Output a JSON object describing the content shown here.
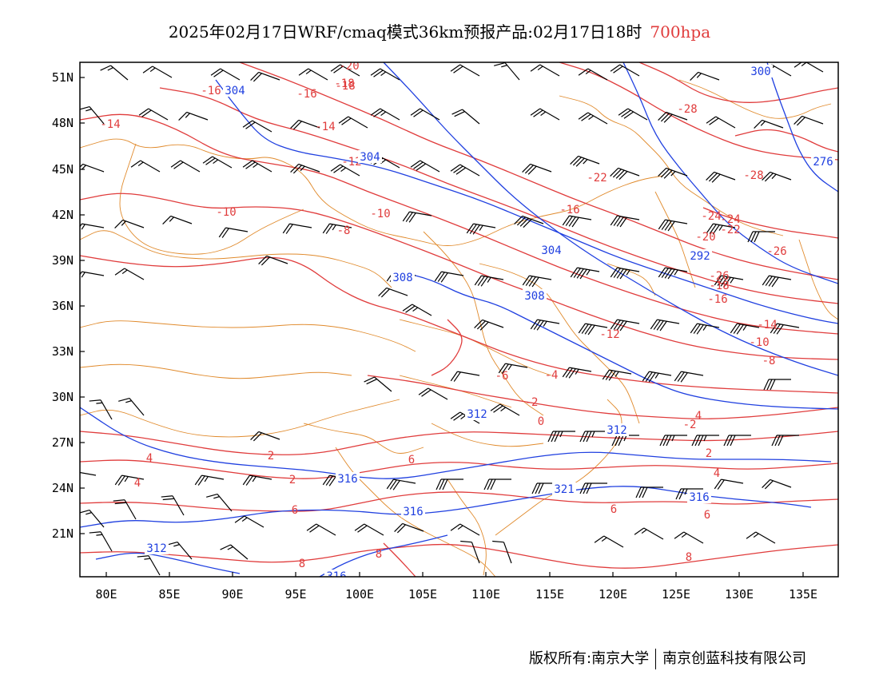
{
  "title": {
    "main": "2025年02月17日WRF/cmaq模式36km预报产品:02月17日18时",
    "level": "700hpa"
  },
  "colors": {
    "temperature": "#e03c3c",
    "height": "#2040e0",
    "boundary": "#e08a2c",
    "wind": "#000000"
  },
  "axes": {
    "lon_labels": [
      "80E",
      "85E",
      "90E",
      "95E",
      "100E",
      "105E",
      "110E",
      "115E",
      "120E",
      "125E",
      "130E",
      "135E"
    ],
    "lat_labels": [
      "51N",
      "48N",
      "45N",
      "42N",
      "39N",
      "36N",
      "33N",
      "30N",
      "27N",
      "24N",
      "21N"
    ]
  },
  "temperature_labels": [
    "-20",
    "-18",
    "-16",
    "-16",
    "-14",
    "-14",
    "-12",
    "-10",
    "-10",
    "-8",
    "-6",
    "-4",
    "-2",
    "-2",
    "0",
    "2",
    "2",
    "2",
    "4",
    "4",
    "4",
    "4",
    "6",
    "6",
    "6",
    "6",
    "8",
    "8",
    "8",
    "-16",
    "-18",
    "-22",
    "-24",
    "-26",
    "-28",
    "-28",
    "-20",
    "-22",
    "-24",
    "-26",
    "-18",
    "-16",
    "-14",
    "-12",
    "-10",
    "-8",
    "-6"
  ],
  "height_labels": [
    "304",
    "304",
    "300",
    "276",
    "292",
    "304",
    "308",
    "308",
    "312",
    "312",
    "316",
    "316",
    "316",
    "321",
    "312",
    "316"
  ],
  "footer": {
    "left": "版权所有:南京大学",
    "right": "南京创蓝科技有限公司"
  }
}
